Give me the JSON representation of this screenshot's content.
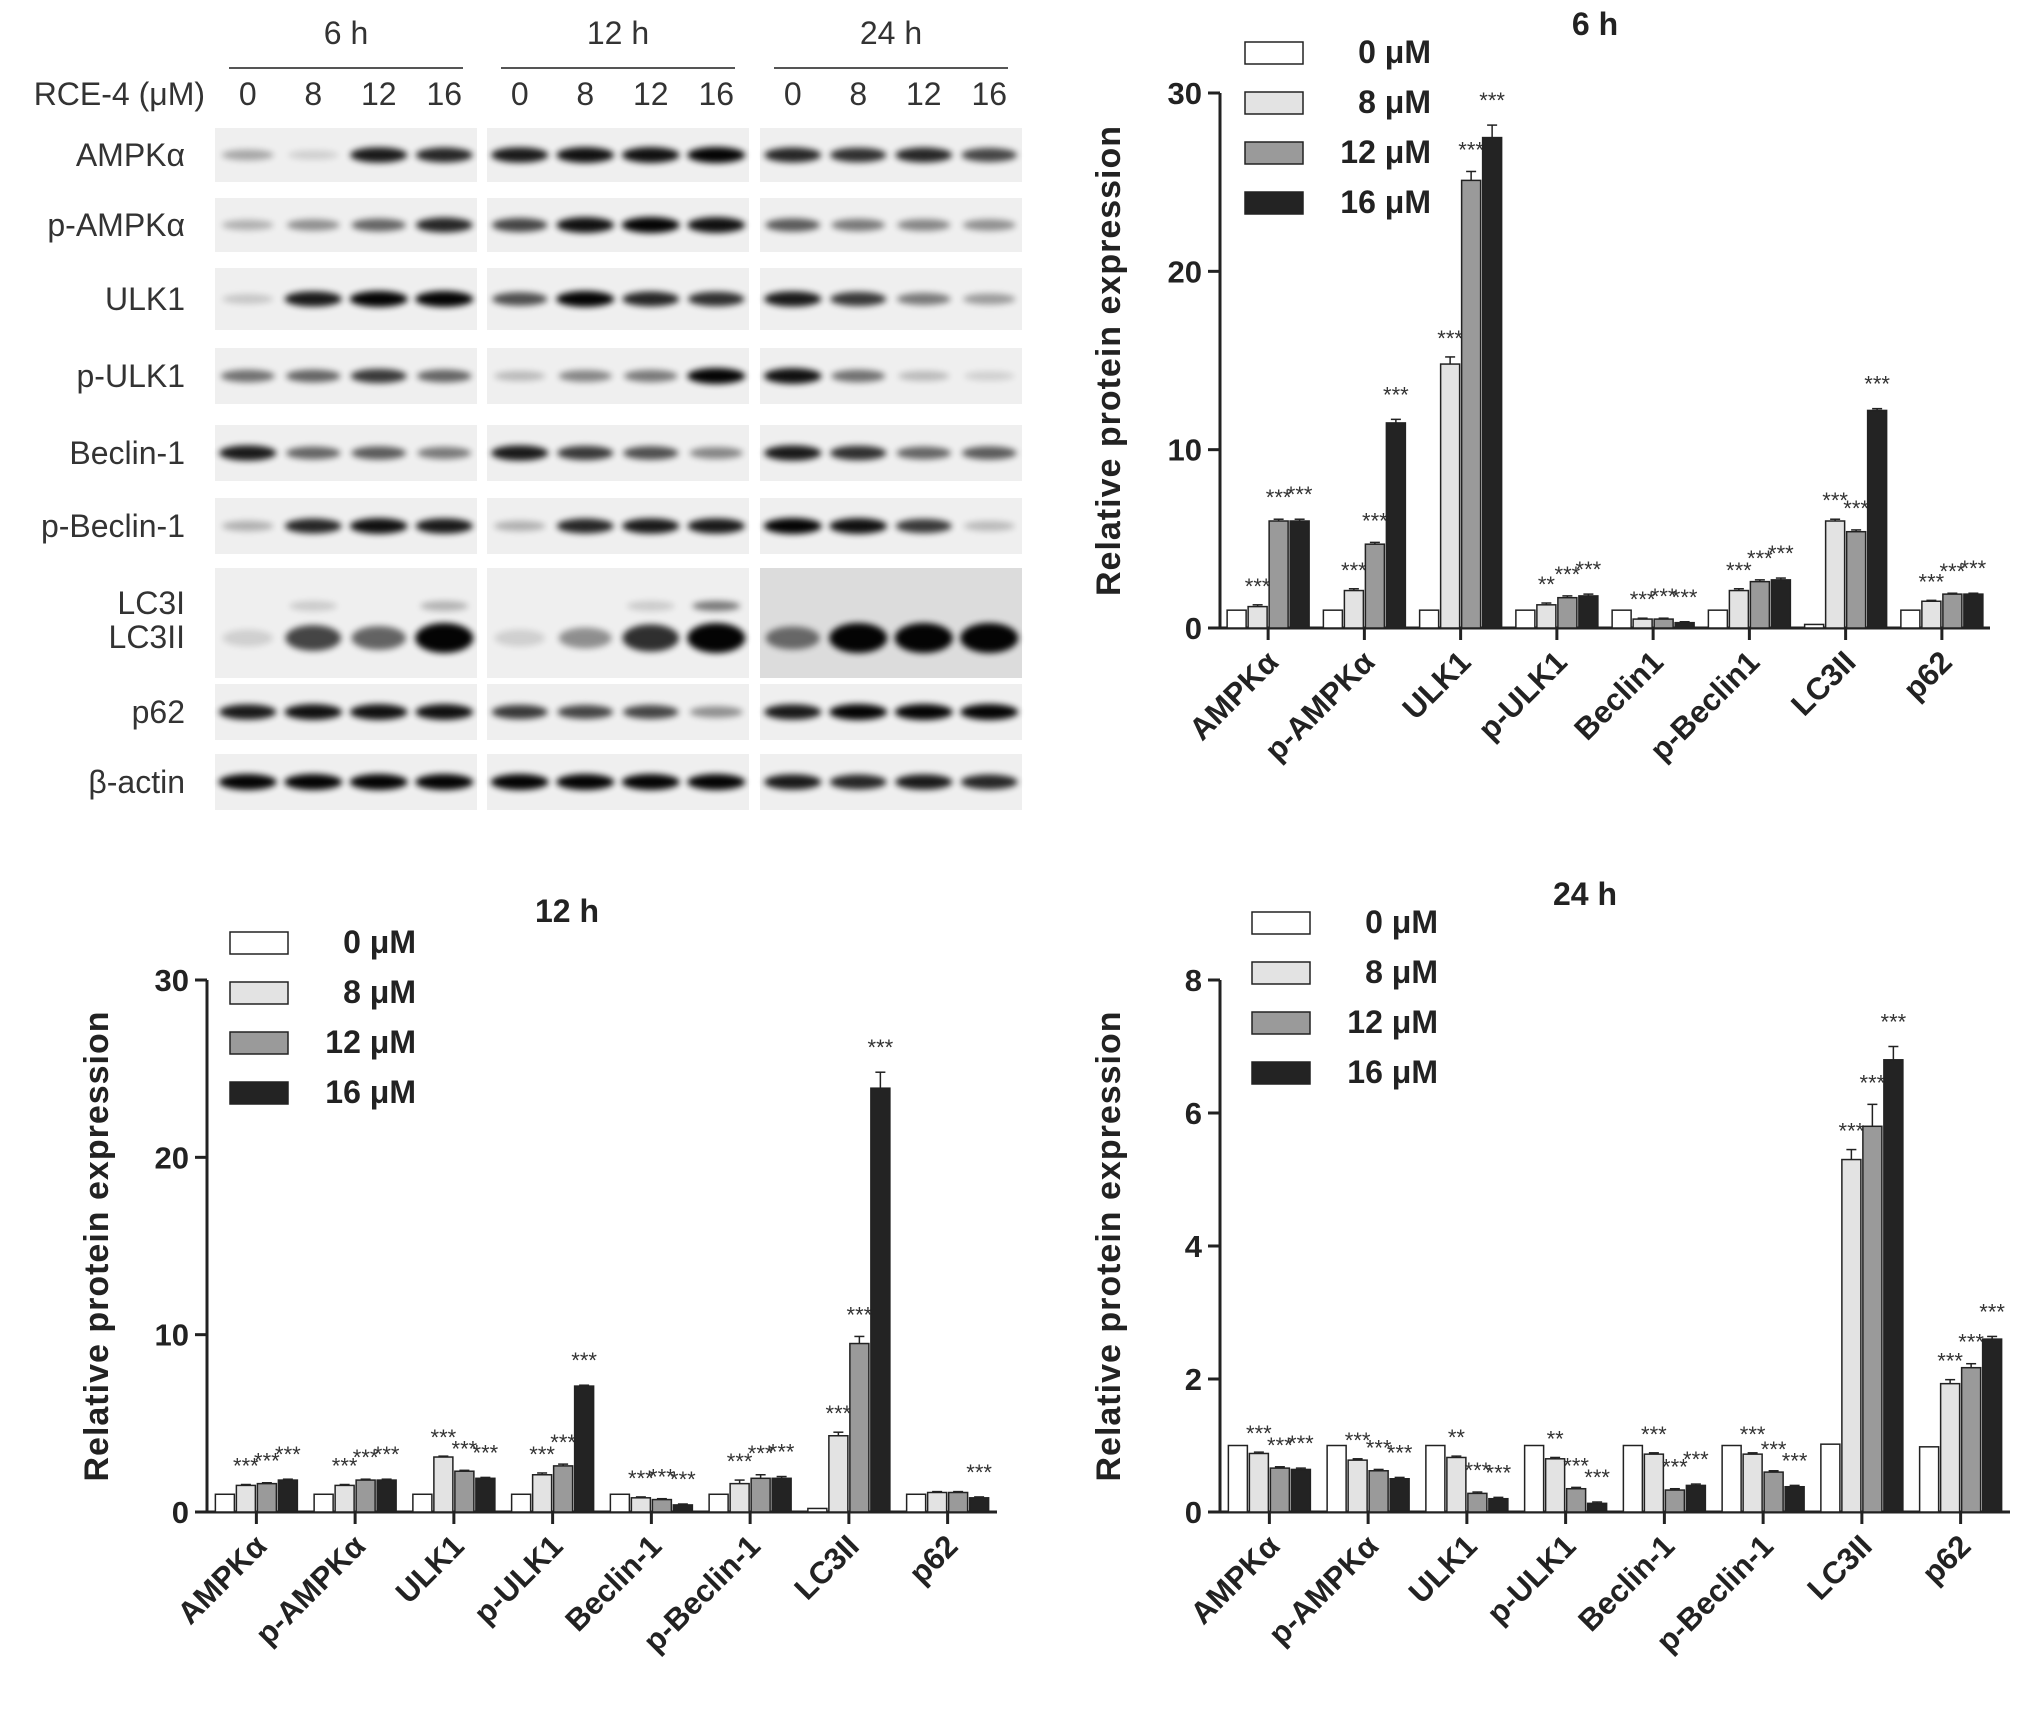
{
  "blot": {
    "row_header": "RCE-4 (μM)",
    "timepoints": [
      "6 h",
      "12 h",
      "24 h"
    ],
    "doses": [
      "0",
      "8",
      "12",
      "16"
    ],
    "rows": [
      {
        "label": "AMPKα",
        "lines": [
          "AMPKα"
        ],
        "intensity": [
          [
            0.25,
            0.05,
            0.9,
            0.85
          ],
          [
            0.9,
            0.95,
            0.95,
            1.0
          ],
          [
            0.85,
            0.8,
            0.85,
            0.7
          ]
        ]
      },
      {
        "label": "p-AMPKα",
        "lines": [
          "p-AMPKα"
        ],
        "intensity": [
          [
            0.2,
            0.35,
            0.55,
            0.85
          ],
          [
            0.7,
            0.95,
            1.0,
            0.95
          ],
          [
            0.6,
            0.45,
            0.4,
            0.35
          ]
        ]
      },
      {
        "label": "ULK1",
        "lines": [
          "ULK1"
        ],
        "intensity": [
          [
            0.1,
            0.9,
            1.0,
            1.0
          ],
          [
            0.65,
            1.0,
            0.85,
            0.8
          ],
          [
            0.9,
            0.75,
            0.45,
            0.3
          ]
        ]
      },
      {
        "label": "p-ULK1",
        "lines": [
          "p-ULK1"
        ],
        "intensity": [
          [
            0.5,
            0.55,
            0.75,
            0.55
          ],
          [
            0.15,
            0.4,
            0.45,
            1.0
          ],
          [
            0.95,
            0.5,
            0.15,
            0.05
          ]
        ]
      },
      {
        "label": "Beclin-1",
        "lines": [
          "Beclin-1"
        ],
        "intensity": [
          [
            0.9,
            0.55,
            0.6,
            0.45
          ],
          [
            0.9,
            0.75,
            0.65,
            0.4
          ],
          [
            0.9,
            0.8,
            0.55,
            0.6
          ]
        ]
      },
      {
        "label": "p-Beclin-1",
        "lines": [
          "p-Beclin-1"
        ],
        "intensity": [
          [
            0.2,
            0.85,
            0.95,
            0.9
          ],
          [
            0.2,
            0.85,
            0.9,
            0.9
          ],
          [
            1.0,
            0.95,
            0.75,
            0.15
          ]
        ]
      },
      {
        "label": "LC3I LC3II",
        "lines": [
          "LC3I",
          "LC3II"
        ],
        "intensity": [
          [
            0.05,
            0.7,
            0.55,
            1.0
          ],
          [
            0.05,
            0.35,
            0.8,
            1.0
          ],
          [
            0.5,
            1.0,
            1.0,
            1.0
          ]
        ]
      },
      {
        "label": "p62",
        "lines": [
          "p62"
        ],
        "intensity": [
          [
            0.9,
            0.95,
            0.95,
            0.95
          ],
          [
            0.75,
            0.7,
            0.7,
            0.35
          ],
          [
            0.9,
            1.0,
            1.0,
            1.0
          ]
        ]
      },
      {
        "label": "β-actin",
        "lines": [
          "β-actin"
        ],
        "intensity": [
          [
            1.0,
            1.0,
            1.0,
            1.0
          ],
          [
            1.0,
            1.0,
            1.0,
            1.0
          ],
          [
            0.9,
            0.85,
            0.9,
            0.85
          ]
        ]
      }
    ]
  },
  "colors": {
    "0 μM": "#ffffff",
    "8 μM": "#e3e3e3",
    "12 μM": "#9a9a9a",
    "16 μM": "#232323"
  },
  "chart_data": [
    {
      "type": "bar",
      "title": "6 h",
      "ylabel": "Relative protein expression",
      "ylim": [
        0,
        30
      ],
      "yticks": [
        0,
        10,
        20,
        30
      ],
      "legend_position": "top-left",
      "categories": [
        "AMPKα",
        "p-AMPKα",
        "ULK1",
        "p-ULK1",
        "Beclin1",
        "p-Beclin1",
        "LC3II",
        "p62"
      ],
      "series": [
        {
          "name": "0 μM",
          "values": [
            1,
            1,
            1,
            1,
            1,
            1,
            0.2,
            1
          ],
          "errors": [
            0,
            0,
            0,
            0,
            0,
            0,
            0,
            0
          ],
          "sig": [
            "",
            "",
            "",
            "",
            "",
            "",
            "",
            ""
          ]
        },
        {
          "name": "8 μM",
          "values": [
            1.2,
            2.1,
            14.8,
            1.3,
            0.5,
            2.1,
            6.0,
            1.5
          ],
          "errors": [
            0.1,
            0.1,
            0.4,
            0.1,
            0.05,
            0.1,
            0.1,
            0.05
          ],
          "sig": [
            "***",
            "***",
            "***",
            "**",
            "***",
            "***",
            "***",
            "***"
          ]
        },
        {
          "name": "12 μM",
          "values": [
            6.0,
            4.7,
            25.1,
            1.7,
            0.5,
            2.6,
            5.4,
            1.9
          ],
          "errors": [
            0.1,
            0.1,
            0.5,
            0.1,
            0.05,
            0.1,
            0.1,
            0.05
          ],
          "sig": [
            "***",
            "***",
            "***",
            "***",
            "***",
            "***",
            "***",
            "***"
          ]
        },
        {
          "name": "16 μM",
          "values": [
            6.0,
            11.5,
            27.5,
            1.8,
            0.3,
            2.7,
            12.2,
            1.9
          ],
          "errors": [
            0.1,
            0.2,
            0.7,
            0.1,
            0.05,
            0.1,
            0.1,
            0.05
          ],
          "sig": [
            "***",
            "***",
            "***",
            "***",
            "***",
            "***",
            "***",
            "***"
          ]
        }
      ]
    },
    {
      "type": "bar",
      "title": "12 h",
      "ylabel": "Relative protein expression",
      "ylim": [
        0,
        30
      ],
      "yticks": [
        0,
        10,
        20,
        30
      ],
      "legend_position": "top-left",
      "categories": [
        "AMPKα",
        "p-AMPKα",
        "ULK1",
        "p-ULK1",
        "Beclin-1",
        "p-Beclin-1",
        "LC3II",
        "p62"
      ],
      "series": [
        {
          "name": "0 μM",
          "values": [
            1,
            1,
            1,
            1,
            1,
            1,
            0.2,
            1
          ],
          "errors": [
            0,
            0,
            0,
            0,
            0,
            0,
            0,
            0
          ],
          "sig": [
            "",
            "",
            "",
            "",
            "",
            "",
            "",
            ""
          ]
        },
        {
          "name": "8 μM",
          "values": [
            1.5,
            1.5,
            3.1,
            2.1,
            0.8,
            1.6,
            4.3,
            1.1
          ],
          "errors": [
            0.05,
            0.05,
            0.05,
            0.1,
            0.05,
            0.2,
            0.2,
            0.05
          ],
          "sig": [
            "***",
            "***",
            "***",
            "***",
            "***",
            "***",
            "***",
            ""
          ]
        },
        {
          "name": "12 μM",
          "values": [
            1.6,
            1.8,
            2.3,
            2.6,
            0.7,
            1.9,
            9.5,
            1.1
          ],
          "errors": [
            0.05,
            0.05,
            0.05,
            0.1,
            0.05,
            0.2,
            0.4,
            0.05
          ],
          "sig": [
            "***",
            "***",
            "***",
            "***",
            "***",
            "***",
            "***",
            ""
          ]
        },
        {
          "name": "16 μM",
          "values": [
            1.8,
            1.8,
            1.9,
            7.1,
            0.4,
            1.9,
            23.9,
            0.8
          ],
          "errors": [
            0.05,
            0.05,
            0.05,
            0.05,
            0.05,
            0.1,
            0.9,
            0.05
          ],
          "sig": [
            "***",
            "***",
            "***",
            "***",
            "***",
            "***",
            "***",
            "***"
          ]
        }
      ]
    },
    {
      "type": "bar",
      "title": "24 h",
      "ylabel": "Relative protein expression",
      "ylim": [
        0,
        8
      ],
      "yticks": [
        0,
        2,
        4,
        6,
        8
      ],
      "legend_position": "top-left",
      "categories": [
        "AMPKα",
        "p-AMPKα",
        "ULK1",
        "p-ULK1",
        "Beclin-1",
        "p-Beclin-1",
        "LC3II",
        "p62"
      ],
      "series": [
        {
          "name": "0 μM",
          "values": [
            1,
            1,
            1,
            1,
            1,
            1,
            1.02,
            0.98
          ],
          "errors": [
            0,
            0,
            0,
            0,
            0,
            0,
            0,
            0
          ],
          "sig": [
            "",
            "",
            "",
            "",
            "",
            "",
            "",
            ""
          ]
        },
        {
          "name": "8 μM",
          "values": [
            0.88,
            0.78,
            0.82,
            0.8,
            0.87,
            0.87,
            5.3,
            1.93
          ],
          "errors": [
            0.02,
            0.02,
            0.02,
            0.02,
            0.02,
            0.02,
            0.15,
            0.06
          ],
          "sig": [
            "***",
            "***",
            "**",
            "**",
            "***",
            "***",
            "***",
            "***"
          ]
        },
        {
          "name": "12 μM",
          "values": [
            0.66,
            0.62,
            0.28,
            0.35,
            0.33,
            0.6,
            5.8,
            2.17
          ],
          "errors": [
            0.02,
            0.02,
            0.02,
            0.02,
            0.02,
            0.02,
            0.33,
            0.06
          ],
          "sig": [
            "***",
            "***",
            "***",
            "***",
            "***",
            "***",
            "***",
            "***"
          ]
        },
        {
          "name": "16 μM",
          "values": [
            0.64,
            0.5,
            0.2,
            0.13,
            0.4,
            0.38,
            6.8,
            2.6
          ],
          "errors": [
            0.02,
            0.02,
            0.02,
            0.02,
            0.02,
            0.02,
            0.2,
            0.04
          ],
          "sig": [
            "***",
            "***",
            "***",
            "***",
            "***",
            "***",
            "***",
            "***"
          ]
        }
      ]
    }
  ]
}
